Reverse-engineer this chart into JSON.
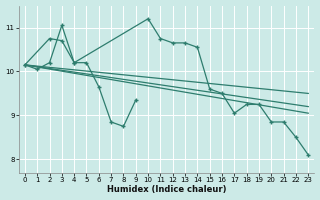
{
  "bg_color": "#cceae7",
  "grid_color": "#ffffff",
  "line_color": "#2e7d6e",
  "xlabel": "Humidex (Indice chaleur)",
  "xlim": [
    -0.5,
    23.5
  ],
  "ylim": [
    7.7,
    11.5
  ],
  "yticks": [
    8,
    9,
    10,
    11
  ],
  "xticks": [
    0,
    1,
    2,
    3,
    4,
    5,
    6,
    7,
    8,
    9,
    10,
    11,
    12,
    13,
    14,
    15,
    16,
    17,
    18,
    19,
    20,
    21,
    22,
    23
  ],
  "line1_x": [
    0,
    1,
    2,
    3,
    4,
    5,
    6,
    7,
    8,
    9
  ],
  "line1_y": [
    10.15,
    10.05,
    10.2,
    11.05,
    10.2,
    10.2,
    9.65,
    8.85,
    8.75,
    9.35
  ],
  "line2_x": [
    0,
    2,
    3,
    4,
    10,
    11,
    12,
    13,
    14,
    15,
    16,
    17,
    18,
    19,
    20,
    21,
    22,
    23
  ],
  "line2_y": [
    10.15,
    10.75,
    10.7,
    10.2,
    11.2,
    10.75,
    10.65,
    10.65,
    10.55,
    9.6,
    9.5,
    9.05,
    9.25,
    9.25,
    8.85,
    8.85,
    8.5,
    8.1
  ],
  "trend1_x": [
    0,
    23
  ],
  "trend1_y": [
    10.15,
    9.5
  ],
  "trend2_x": [
    0,
    23
  ],
  "trend2_y": [
    10.15,
    9.2
  ],
  "trend3_x": [
    0,
    23
  ],
  "trend3_y": [
    10.15,
    9.05
  ]
}
